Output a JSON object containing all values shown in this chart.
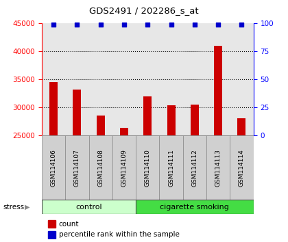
{
  "title": "GDS2491 / 202286_s_at",
  "samples": [
    "GSM114106",
    "GSM114107",
    "GSM114108",
    "GSM114109",
    "GSM114110",
    "GSM114111",
    "GSM114112",
    "GSM114113",
    "GSM114114"
  ],
  "counts": [
    34500,
    33200,
    28500,
    26400,
    31900,
    30400,
    30500,
    41000,
    28100
  ],
  "percentile_ranks": [
    100,
    100,
    100,
    100,
    100,
    100,
    100,
    100,
    100
  ],
  "groups": [
    "control",
    "control",
    "control",
    "control",
    "cigarette smoking",
    "cigarette smoking",
    "cigarette smoking",
    "cigarette smoking",
    "cigarette smoking"
  ],
  "n_control": 4,
  "n_smoking": 5,
  "ylim_left": [
    25000,
    45000
  ],
  "ylim_right": [
    0,
    100
  ],
  "yticks_left": [
    25000,
    30000,
    35000,
    40000,
    45000
  ],
  "yticks_right": [
    0,
    25,
    50,
    75,
    100
  ],
  "bar_color": "#cc0000",
  "scatter_color": "#0000cc",
  "control_color_light": "#ccffcc",
  "smoking_color": "#44dd44",
  "bar_bottom": 25000,
  "col_bg": "#d0d0d0"
}
